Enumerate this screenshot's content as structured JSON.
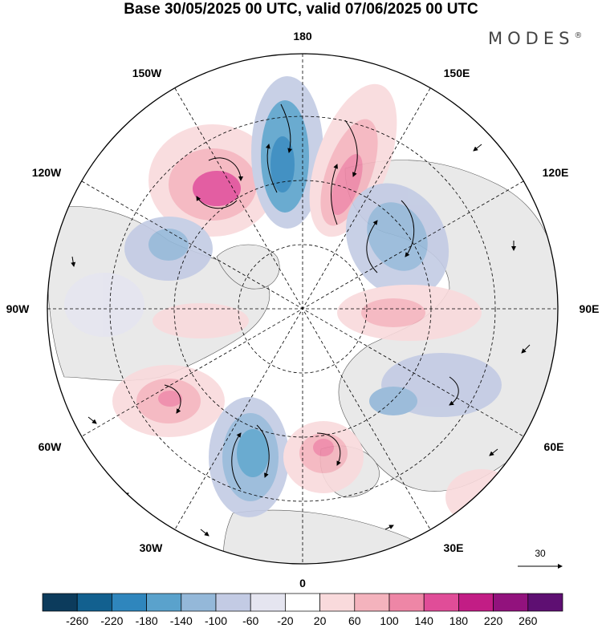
{
  "title": "Base 30/05/2025 00 UTC, valid 07/06/2025 00 UTC",
  "brand": "MODES",
  "brand_mark": "®",
  "longitude_labels": {
    "top": "180",
    "bottom": "0",
    "left": "90W",
    "right": "90E",
    "upper_left": "150W",
    "upper_right": "150E",
    "mid_upper_left": "120W",
    "mid_upper_right": "120E",
    "mid_lower_left": "60W",
    "mid_lower_right": "60E",
    "lower_left": "30W",
    "lower_right": "30E"
  },
  "vector_reference": {
    "value": "30"
  },
  "colorbar": {
    "labels": [
      "-260",
      "-220",
      "-180",
      "-140",
      "-100",
      "-60",
      "-20",
      "20",
      "60",
      "100",
      "140",
      "180",
      "220",
      "260"
    ],
    "colors": [
      "#0c3b5c",
      "#12608f",
      "#2f86bd",
      "#5aa2cc",
      "#94b8d9",
      "#c3cbe4",
      "#e5e5f0",
      "#ffffff",
      "#f9dadc",
      "#f4b3bd",
      "#ee86a6",
      "#e04d98",
      "#c21d85",
      "#92127d",
      "#5e0f72"
    ]
  },
  "anomaly_centers": [
    {
      "kind": "positive",
      "level": "#e04d98",
      "region": "North Pacific near 150W"
    },
    {
      "kind": "negative",
      "level": "#2f86bd",
      "region": "Bering Strait / near 180"
    },
    {
      "kind": "positive",
      "level": "#ee86a6",
      "region": "Eastern Siberia near 150E"
    },
    {
      "kind": "negative",
      "level": "#5aa2cc",
      "region": "Central Siberia near 120E"
    },
    {
      "kind": "negative",
      "level": "#5aa2cc",
      "region": "North Atlantic near 30W"
    },
    {
      "kind": "positive",
      "level": "#ee86a6",
      "region": "Western Europe"
    },
    {
      "kind": "positive",
      "level": "#ee86a6",
      "region": "Labrador near 60W"
    },
    {
      "kind": "negative",
      "level": "#94b8d9",
      "region": "Canada near 120W"
    }
  ]
}
